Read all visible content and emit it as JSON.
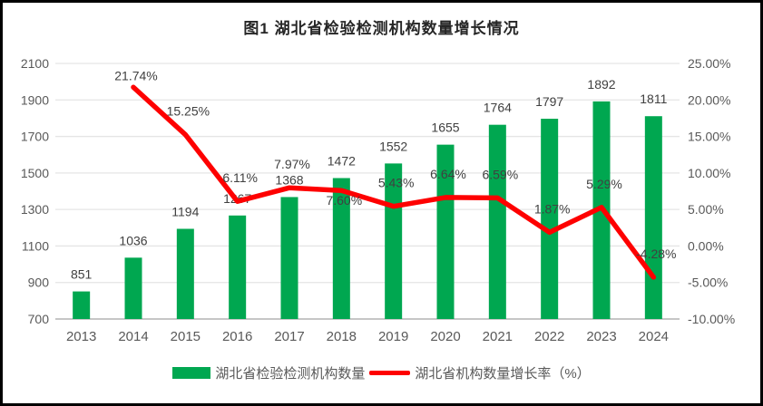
{
  "header": {
    "title": "图1 湖北省检验检测机构数量增长情况"
  },
  "colors": {
    "bar": "#00A750",
    "line": "#FE0000",
    "grid": "#E5E5E5",
    "axis_line": "#C6C6C6",
    "axis_text": "#595959",
    "data_label_text": "#404040",
    "title_text": "#262626",
    "background": "#FFFFFF",
    "border": "#000000"
  },
  "legend": {
    "items": [
      {
        "label": "湖北省检验检测机构数量",
        "marker": "bar"
      },
      {
        "label": "湖北省机构数量增长率（%）",
        "marker": "line"
      }
    ]
  },
  "chart_data": {
    "type": "bar+line",
    "title": "图1 湖北省检验检测机构数量增长情况",
    "categories": [
      "2013",
      "2014",
      "2015",
      "2016",
      "2017",
      "2018",
      "2019",
      "2020",
      "2021",
      "2022",
      "2023",
      "2024"
    ],
    "series": [
      {
        "name": "湖北省检验检测机构数量",
        "render": "bar",
        "axis": "left",
        "values": [
          851,
          1036,
          1194,
          1267,
          1368,
          1472,
          1552,
          1655,
          1764,
          1797,
          1892,
          1811
        ],
        "value_labels": [
          "851",
          "1036",
          "1194",
          "1267",
          "1368",
          "1472",
          "1552",
          "1655",
          "1764",
          "1797",
          "1892",
          "1811"
        ]
      },
      {
        "name": "湖北省机构数量增长率（%）",
        "render": "line",
        "axis": "right",
        "values": [
          null,
          21.74,
          15.25,
          6.11,
          7.97,
          7.6,
          5.43,
          6.64,
          6.59,
          1.87,
          5.29,
          -4.28
        ],
        "value_labels": [
          null,
          "21.74%",
          "15.25%",
          "6.11%",
          "7.97%",
          "7.60%",
          "5.43%",
          "6.64%",
          "6.59%",
          "1.87%",
          "5.29%",
          "-4.28%"
        ],
        "label_positions": [
          null,
          "near",
          "above",
          "above",
          "above",
          "below",
          "above",
          "above",
          "above",
          "above",
          "above",
          "above"
        ]
      }
    ],
    "left_axis": {
      "min": 700,
      "max": 2100,
      "step": 200,
      "tick_labels": [
        "700",
        "900",
        "1100",
        "1300",
        "1500",
        "1700",
        "1900",
        "2100"
      ]
    },
    "right_axis": {
      "min": -10,
      "max": 25,
      "step": 5,
      "tick_labels": [
        "-10.00%",
        "-5.00%",
        "0.00%",
        "5.00%",
        "10.00%",
        "15.00%",
        "20.00%",
        "25.00%"
      ]
    },
    "grid": "horizontal",
    "legend_position": "bottom"
  }
}
